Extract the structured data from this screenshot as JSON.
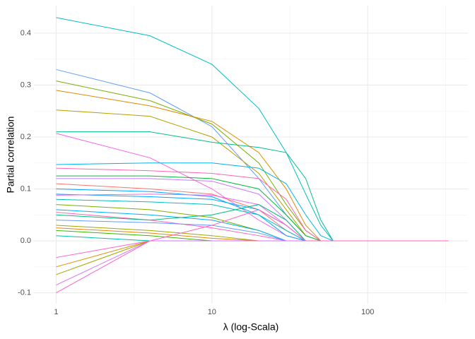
{
  "chart_data": {
    "type": "line",
    "xlabel": "λ (log-Scala)",
    "ylabel": "Partial correlation",
    "xlog": true,
    "grid": true,
    "xlim": [
      0.72,
      440
    ],
    "ylim": [
      -0.121,
      0.453
    ],
    "xticks": [
      1,
      10,
      100
    ],
    "x_minor_ticks": [
      3.162,
      31.62,
      316.2
    ],
    "yticks": [
      -0.1,
      {
        "value": 0,
        "label": "0.0"
      },
      0.1,
      0.2,
      0.3,
      0.4
    ],
    "y_minor_ticks": [
      -0.05,
      0.05,
      0.15,
      0.25,
      0.35
    ],
    "x": [
      1,
      4,
      10,
      20,
      30,
      40,
      50,
      60,
      330
    ],
    "series": [
      {
        "color": "#00BFC4",
        "values": [
          0.43,
          0.395,
          0.34,
          0.255,
          0.17,
          0.09,
          0.03,
          0,
          0
        ]
      },
      {
        "color": "#619CFF",
        "values": [
          0.33,
          0.285,
          0.22,
          0.12,
          0.05,
          0.01,
          0,
          0,
          0
        ]
      },
      {
        "color": "#7CAE00",
        "values": [
          0.308,
          0.27,
          0.225,
          0.15,
          0.07,
          0.02,
          0,
          0,
          0
        ]
      },
      {
        "color": "#DE8C00",
        "values": [
          0.29,
          0.26,
          0.23,
          0.17,
          0.1,
          0.03,
          0,
          0,
          0
        ]
      },
      {
        "color": "#B79F00",
        "values": [
          0.252,
          0.24,
          0.2,
          0.13,
          0.06,
          0.01,
          0,
          0,
          0
        ]
      },
      {
        "color": "#00C08B",
        "values": [
          0.21,
          0.21,
          0.19,
          0.18,
          0.17,
          0.12,
          0.04,
          0,
          0
        ]
      },
      {
        "color": "#F564E3",
        "values": [
          0.207,
          0.16,
          0.1,
          0.04,
          0.01,
          0,
          0,
          0,
          0
        ]
      },
      {
        "color": "#00B4F0",
        "values": [
          0.147,
          0.15,
          0.15,
          0.14,
          0.11,
          0.05,
          0.01,
          0,
          0
        ]
      },
      {
        "color": "#FF64B0",
        "values": [
          0.14,
          0.135,
          0.13,
          0.12,
          0.08,
          0.02,
          0,
          0,
          0
        ]
      },
      {
        "color": "#00BA38",
        "values": [
          0.125,
          0.125,
          0.12,
          0.1,
          0.05,
          0.01,
          0,
          0,
          0
        ]
      },
      {
        "color": "#C77CFF",
        "values": [
          0.12,
          0.12,
          0.115,
          0.09,
          0.04,
          0,
          0,
          0,
          0
        ]
      },
      {
        "color": "#F8766D",
        "values": [
          0.11,
          0.1,
          0.09,
          0.06,
          0.02,
          0,
          0,
          0,
          0
        ]
      },
      {
        "color": "#00A5FF",
        "values": [
          0.1,
          0.095,
          0.085,
          0.05,
          0.01,
          0,
          0,
          0,
          0
        ]
      },
      {
        "color": "#00A9FF",
        "values": [
          0.09,
          0.085,
          0.08,
          0.06,
          0.03,
          0,
          0,
          0,
          0
        ]
      },
      {
        "color": "#E76BF3",
        "values": [
          0.088,
          0.09,
          0.088,
          0.07,
          0.03,
          0,
          0,
          0,
          0
        ]
      },
      {
        "color": "#00BFC4",
        "values": [
          0.08,
          0.075,
          0.07,
          0.05,
          0.02,
          0,
          0,
          0,
          0
        ]
      },
      {
        "color": "#7CAE00",
        "values": [
          0.07,
          0.06,
          0.045,
          0.02,
          0,
          0,
          0,
          0,
          0
        ]
      },
      {
        "color": "#00B0F6",
        "values": [
          0.06,
          0.05,
          0.04,
          0.02,
          0,
          0,
          0,
          0,
          0
        ]
      },
      {
        "color": "#FF62BC",
        "values": [
          0.055,
          0.04,
          0.025,
          0.01,
          0,
          0,
          0,
          0,
          0
        ]
      },
      {
        "color": "#00BF7D",
        "values": [
          0.05,
          0.04,
          0.05,
          0.07,
          0.04,
          0,
          0,
          0,
          0
        ]
      },
      {
        "color": "#619CFF",
        "values": [
          0.04,
          0.035,
          0.03,
          0.015,
          0,
          0,
          0,
          0,
          0
        ]
      },
      {
        "color": "#A3A500",
        "values": [
          0.03,
          0.02,
          0.01,
          0,
          0,
          0,
          0,
          0,
          0
        ]
      },
      {
        "color": "#E58700",
        "values": [
          0.025,
          0.015,
          0.005,
          0,
          0,
          0,
          0,
          0,
          0
        ]
      },
      {
        "color": "#39B600",
        "values": [
          0.02,
          0.01,
          0,
          0,
          0,
          0,
          0,
          0,
          0
        ]
      },
      {
        "color": "#00C0AF",
        "values": [
          0.01,
          0,
          0,
          0,
          0,
          0,
          0,
          0,
          0
        ]
      },
      {
        "color": "#FD61D1",
        "values": [
          -0.032,
          0,
          0,
          0,
          0,
          0,
          0,
          0,
          0
        ]
      },
      {
        "color": "#D89000",
        "values": [
          -0.05,
          0,
          0,
          0,
          0,
          0,
          0,
          0,
          0
        ]
      },
      {
        "color": "#A3A500",
        "values": [
          -0.065,
          0,
          0,
          0,
          0,
          0,
          0,
          0,
          0
        ]
      },
      {
        "color": "#DB72FB",
        "values": [
          -0.085,
          0,
          0,
          0,
          0,
          0,
          0,
          0,
          0
        ]
      },
      {
        "color": "#FF61C3",
        "values": [
          -0.1,
          0,
          0.03,
          0.06,
          0.03,
          0,
          0,
          0,
          0
        ]
      }
    ]
  }
}
